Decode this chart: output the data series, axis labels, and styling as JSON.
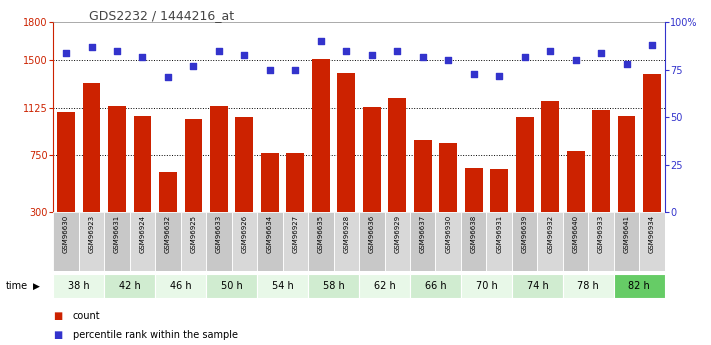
{
  "title": "GDS2232 / 1444216_at",
  "samples": [
    "GSM96630",
    "GSM96923",
    "GSM96631",
    "GSM96924",
    "GSM96632",
    "GSM96925",
    "GSM96633",
    "GSM96926",
    "GSM96634",
    "GSM96927",
    "GSM96635",
    "GSM96928",
    "GSM96636",
    "GSM96929",
    "GSM96637",
    "GSM96930",
    "GSM96638",
    "GSM96931",
    "GSM96639",
    "GSM96932",
    "GSM96640",
    "GSM96933",
    "GSM96641",
    "GSM96934"
  ],
  "counts": [
    1090,
    1320,
    1140,
    1060,
    620,
    1040,
    1140,
    1050,
    770,
    770,
    1510,
    1400,
    1130,
    1200,
    870,
    850,
    650,
    640,
    1050,
    1180,
    780,
    1110,
    1060,
    1390
  ],
  "percentile": [
    84,
    87,
    85,
    82,
    71,
    77,
    85,
    83,
    75,
    75,
    90,
    85,
    83,
    85,
    82,
    80,
    73,
    72,
    82,
    85,
    80,
    84,
    78,
    88
  ],
  "time_groups": [
    {
      "label": "38 h",
      "start": 0,
      "end": 2,
      "color": "#e8f8e8"
    },
    {
      "label": "42 h",
      "start": 2,
      "end": 4,
      "color": "#d0ecd0"
    },
    {
      "label": "46 h",
      "start": 4,
      "end": 6,
      "color": "#e8f8e8"
    },
    {
      "label": "50 h",
      "start": 6,
      "end": 8,
      "color": "#d0ecd0"
    },
    {
      "label": "54 h",
      "start": 8,
      "end": 10,
      "color": "#e8f8e8"
    },
    {
      "label": "58 h",
      "start": 10,
      "end": 12,
      "color": "#d0ecd0"
    },
    {
      "label": "62 h",
      "start": 12,
      "end": 14,
      "color": "#e8f8e8"
    },
    {
      "label": "66 h",
      "start": 14,
      "end": 16,
      "color": "#d0ecd0"
    },
    {
      "label": "70 h",
      "start": 16,
      "end": 18,
      "color": "#e8f8e8"
    },
    {
      "label": "74 h",
      "start": 18,
      "end": 20,
      "color": "#d0ecd0"
    },
    {
      "label": "78 h",
      "start": 20,
      "end": 22,
      "color": "#e8f8e8"
    },
    {
      "label": "82 h",
      "start": 22,
      "end": 24,
      "color": "#66cc66"
    }
  ],
  "bar_color": "#cc2200",
  "dot_color": "#3333cc",
  "ylim_left": [
    300,
    1800
  ],
  "ylim_right": [
    0,
    100
  ],
  "yticks_left": [
    300,
    750,
    1125,
    1500,
    1800
  ],
  "yticks_right": [
    0,
    25,
    50,
    75,
    100
  ],
  "grid_values": [
    750,
    1125,
    1500
  ],
  "bg_color": "#ffffff",
  "title_color": "#444444",
  "left_axis_color": "#cc2200",
  "right_axis_color": "#3333cc",
  "legend_count_label": "count",
  "legend_pct_label": "percentile rank within the sample"
}
